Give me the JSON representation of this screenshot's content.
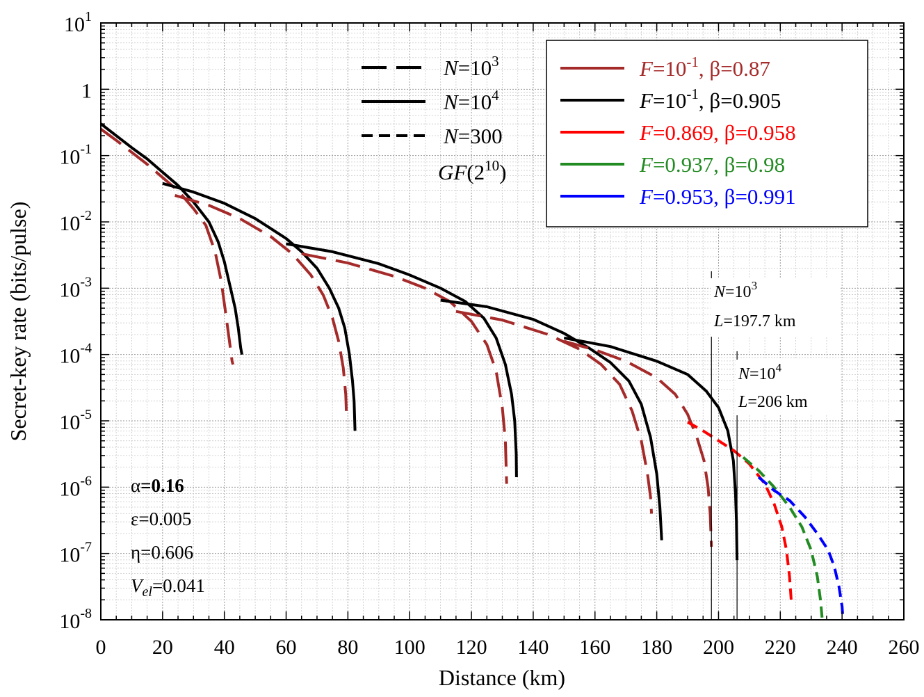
{
  "chart_data": {
    "type": "line",
    "xlabel": "Distance (km)",
    "ylabel": "Secret-key rate (bits/pulse)",
    "xlim": [
      0,
      260
    ],
    "ylim_log10": [
      -8,
      1
    ],
    "yscale": "log",
    "xticks": [
      "0",
      "20",
      "40",
      "60",
      "80",
      "100",
      "120",
      "140",
      "160",
      "180",
      "200",
      "220",
      "240",
      "260"
    ],
    "yticks": [
      {
        "base": "10",
        "exp": "-8"
      },
      {
        "base": "10",
        "exp": "-7"
      },
      {
        "base": "10",
        "exp": "-6"
      },
      {
        "base": "10",
        "exp": "-5"
      },
      {
        "base": "10",
        "exp": "-4"
      },
      {
        "base": "10",
        "exp": "-3"
      },
      {
        "base": "10",
        "exp": "-2"
      },
      {
        "base": "10",
        "exp": "-1"
      },
      {
        "base": "1",
        "exp": ""
      },
      {
        "base": "10",
        "exp": "1"
      }
    ],
    "grid": true,
    "params": {
      "alpha": {
        "sym": "α",
        "eq": "=",
        "value": "0.16"
      },
      "epsilon": {
        "sym": "ε",
        "eq": "=",
        "value": "0.005"
      },
      "eta": {
        "sym": "η",
        "eq": "=",
        "value": "0.606"
      },
      "vel": {
        "sym": "V",
        "sub": "el",
        "eq": "=",
        "value": "0.041"
      }
    },
    "legend_styles": [
      {
        "name": "N=10^3",
        "var": "N",
        "eq": "=10",
        "sup": "3",
        "dash": "long"
      },
      {
        "name": "N=10^4",
        "var": "N",
        "eq": "=10",
        "sup": "4",
        "dash": "solid"
      },
      {
        "name": "N=300",
        "var": "N",
        "eq": "=300",
        "sup": "",
        "dash": "short"
      }
    ],
    "field": {
      "pre": "GF",
      "mid": "(2",
      "sup": "10",
      "post": ")"
    },
    "legend_colors": [
      {
        "var": "F",
        "f": "=10",
        "sup": "-1",
        "beta": ", β=0.87",
        "color": "#a52a2a"
      },
      {
        "var": "F",
        "f": "=10",
        "sup": "-1",
        "beta": ", β=0.905",
        "color": "#000000"
      },
      {
        "var": "F",
        "f": "=0.869",
        "sup": "",
        "beta": ", β=0.958",
        "color": "#ff0000"
      },
      {
        "var": "F",
        "f": "=0.937",
        "sup": "",
        "beta": ", β=0.98",
        "color": "#228b22"
      },
      {
        "var": "F",
        "f": "=0.953",
        "sup": "",
        "beta": ", β=0.991",
        "color": "#0000ff"
      }
    ],
    "annotations": [
      {
        "name": "N=10^3 cutoff",
        "x": 197.7,
        "var1": "N",
        "t1": "=10",
        "sup": "3",
        "var2": "L",
        "t2": "=197.7 km"
      },
      {
        "name": "N=10^4 cutoff",
        "x": 206,
        "var1": "N",
        "t1": "=10",
        "sup": "4",
        "var2": "L",
        "t2": "=206 km"
      }
    ],
    "series": [
      {
        "name": "N=10^4 F=0.1 beta=0.905 seg1",
        "color": "#000000",
        "dash": "solid",
        "points": [
          [
            0,
            -0.52
          ],
          [
            5,
            -0.7
          ],
          [
            10,
            -0.88
          ],
          [
            15,
            -1.05
          ],
          [
            20,
            -1.25
          ],
          [
            25,
            -1.45
          ],
          [
            30,
            -1.7
          ],
          [
            35,
            -2.0
          ],
          [
            38,
            -2.3
          ],
          [
            40,
            -2.6
          ],
          [
            42,
            -3.0
          ],
          [
            43.5,
            -3.3
          ],
          [
            44.5,
            -3.6
          ],
          [
            45.3,
            -3.9
          ],
          [
            45.7,
            -4.0
          ]
        ]
      },
      {
        "name": "N=10^3 F=0.1 beta=0.87 seg1",
        "color": "#a52a2a",
        "dash": "long",
        "points": [
          [
            0,
            -0.6
          ],
          [
            5,
            -0.77
          ],
          [
            10,
            -0.95
          ],
          [
            15,
            -1.13
          ],
          [
            20,
            -1.33
          ],
          [
            25,
            -1.53
          ],
          [
            30,
            -1.8
          ],
          [
            34,
            -2.05
          ],
          [
            37,
            -2.45
          ],
          [
            39,
            -2.9
          ],
          [
            40.5,
            -3.4
          ],
          [
            41.5,
            -3.75
          ],
          [
            42.5,
            -4.1
          ],
          [
            42.8,
            -4.15
          ]
        ]
      },
      {
        "name": "N=10^4 seg2",
        "color": "#000000",
        "dash": "solid",
        "points": [
          [
            20,
            -1.42
          ],
          [
            30,
            -1.55
          ],
          [
            40,
            -1.72
          ],
          [
            50,
            -1.95
          ],
          [
            60,
            -2.25
          ],
          [
            65,
            -2.45
          ],
          [
            70,
            -2.7
          ],
          [
            74,
            -3.0
          ],
          [
            77,
            -3.3
          ],
          [
            79,
            -3.6
          ],
          [
            80.5,
            -4.0
          ],
          [
            81.5,
            -4.4
          ],
          [
            82,
            -4.7
          ],
          [
            82.3,
            -5.15
          ]
        ]
      },
      {
        "name": "N=10^3 seg2",
        "color": "#a52a2a",
        "dash": "long",
        "points": [
          [
            24,
            -1.6
          ],
          [
            35,
            -1.75
          ],
          [
            45,
            -1.95
          ],
          [
            55,
            -2.22
          ],
          [
            62,
            -2.48
          ],
          [
            68,
            -2.8
          ],
          [
            72,
            -3.1
          ],
          [
            75,
            -3.45
          ],
          [
            77,
            -3.8
          ],
          [
            78.5,
            -4.2
          ],
          [
            79.3,
            -4.6
          ],
          [
            79.6,
            -5.0
          ]
        ]
      },
      {
        "name": "N=10^4 seg3",
        "color": "#000000",
        "dash": "solid",
        "points": [
          [
            60,
            -2.33
          ],
          [
            75,
            -2.45
          ],
          [
            90,
            -2.63
          ],
          [
            100,
            -2.8
          ],
          [
            110,
            -3.0
          ],
          [
            118,
            -3.2
          ],
          [
            124,
            -3.45
          ],
          [
            128,
            -3.75
          ],
          [
            131,
            -4.15
          ],
          [
            133,
            -4.6
          ],
          [
            134,
            -5.0
          ],
          [
            134.5,
            -5.5
          ],
          [
            134.6,
            -5.85
          ]
        ]
      },
      {
        "name": "N=10^3 seg3",
        "color": "#a52a2a",
        "dash": "long",
        "points": [
          [
            65,
            -2.48
          ],
          [
            80,
            -2.62
          ],
          [
            95,
            -2.82
          ],
          [
            105,
            -3.0
          ],
          [
            113,
            -3.2
          ],
          [
            120,
            -3.5
          ],
          [
            125,
            -3.85
          ],
          [
            128,
            -4.25
          ],
          [
            130,
            -4.8
          ],
          [
            131,
            -5.3
          ],
          [
            131.4,
            -5.95
          ]
        ]
      },
      {
        "name": "N=10^4 seg4",
        "color": "#000000",
        "dash": "solid",
        "points": [
          [
            110,
            -3.18
          ],
          [
            125,
            -3.28
          ],
          [
            140,
            -3.47
          ],
          [
            150,
            -3.68
          ],
          [
            158,
            -3.9
          ],
          [
            165,
            -4.12
          ],
          [
            171,
            -4.4
          ],
          [
            175,
            -4.75
          ],
          [
            178,
            -5.25
          ],
          [
            180,
            -5.8
          ],
          [
            181,
            -6.3
          ],
          [
            181.6,
            -6.8
          ]
        ]
      },
      {
        "name": "N=10^3 seg4",
        "color": "#a52a2a",
        "dash": "long",
        "points": [
          [
            115,
            -3.35
          ],
          [
            130,
            -3.48
          ],
          [
            145,
            -3.7
          ],
          [
            155,
            -3.92
          ],
          [
            162,
            -4.15
          ],
          [
            168,
            -4.45
          ],
          [
            172,
            -4.85
          ],
          [
            175,
            -5.3
          ],
          [
            177,
            -5.8
          ],
          [
            178,
            -6.15
          ],
          [
            178.3,
            -6.4
          ]
        ]
      },
      {
        "name": "N=10^4 seg5",
        "color": "#000000",
        "dash": "solid",
        "points": [
          [
            150,
            -3.75
          ],
          [
            165,
            -3.88
          ],
          [
            180,
            -4.1
          ],
          [
            190,
            -4.3
          ],
          [
            196,
            -4.55
          ],
          [
            200,
            -4.8
          ],
          [
            203,
            -5.15
          ],
          [
            204.8,
            -5.6
          ],
          [
            205.5,
            -6.1
          ],
          [
            205.8,
            -6.5
          ],
          [
            206,
            -7.1
          ]
        ]
      },
      {
        "name": "N=10^3 seg5",
        "color": "#a52a2a",
        "dash": "long",
        "points": [
          [
            150,
            -3.8
          ],
          [
            160,
            -3.93
          ],
          [
            170,
            -4.1
          ],
          [
            180,
            -4.35
          ],
          [
            186,
            -4.6
          ],
          [
            190,
            -4.9
          ],
          [
            193,
            -5.25
          ],
          [
            195.3,
            -5.6
          ],
          [
            196.6,
            -6.0
          ],
          [
            197.3,
            -6.4
          ],
          [
            197.7,
            -6.9
          ]
        ]
      },
      {
        "name": "N=300 F=0.869 beta=0.958",
        "color": "#ff0000",
        "dash": "short",
        "points": [
          [
            190,
            -5.02
          ],
          [
            195,
            -5.15
          ],
          [
            200,
            -5.3
          ],
          [
            205,
            -5.45
          ],
          [
            210,
            -5.65
          ],
          [
            215,
            -5.95
          ],
          [
            218,
            -6.25
          ],
          [
            220.5,
            -6.6
          ],
          [
            222,
            -6.95
          ],
          [
            223,
            -7.35
          ],
          [
            223.6,
            -7.75
          ]
        ]
      },
      {
        "name": "N=300 F=0.937 beta=0.98",
        "color": "#228b22",
        "dash": "short",
        "points": [
          [
            208,
            -5.55
          ],
          [
            213,
            -5.75
          ],
          [
            218,
            -6.0
          ],
          [
            223,
            -6.3
          ],
          [
            227,
            -6.6
          ],
          [
            230,
            -6.95
          ],
          [
            232,
            -7.35
          ],
          [
            233,
            -7.7
          ],
          [
            233.6,
            -8.0
          ]
        ]
      },
      {
        "name": "N=300 F=0.953 beta=0.991",
        "color": "#0000ff",
        "dash": "short",
        "points": [
          [
            213,
            -5.85
          ],
          [
            218,
            -6.05
          ],
          [
            223,
            -6.2
          ],
          [
            228,
            -6.45
          ],
          [
            232,
            -6.7
          ],
          [
            235.5,
            -6.95
          ],
          [
            237.5,
            -7.2
          ],
          [
            239,
            -7.5
          ],
          [
            240,
            -7.8
          ],
          [
            240.3,
            -8.0
          ]
        ]
      }
    ]
  }
}
